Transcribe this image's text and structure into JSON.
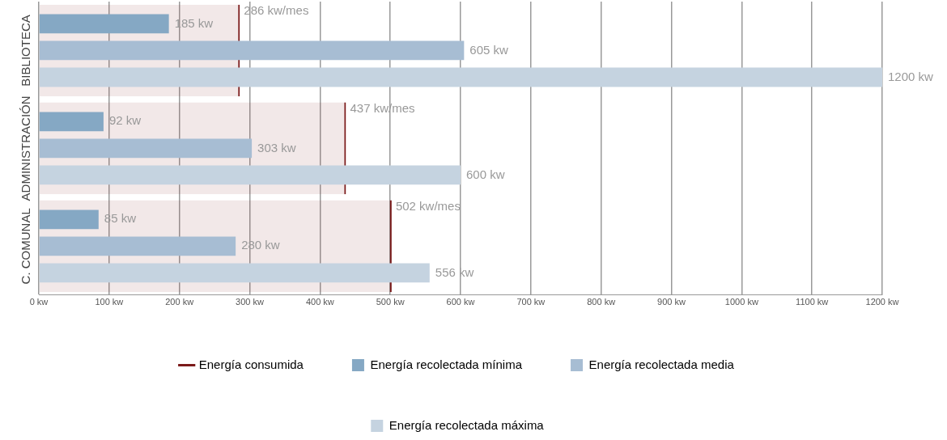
{
  "chart_data": {
    "type": "bar",
    "orientation": "horizontal",
    "categories": [
      "BIBLIOTECA",
      "ADMINISTRACIÓN",
      "C. COMUNAL"
    ],
    "series": [
      {
        "name": "Energía consumida",
        "type": "bar",
        "color": "#7b1a1a",
        "values": [
          286,
          437,
          502
        ],
        "value_labels": [
          "286 kw/mes",
          "437 kw/mes",
          "502 kw/mes"
        ]
      },
      {
        "name": "Energía recolectada mínima",
        "color": "#85a8c4",
        "values": [
          185,
          92,
          85
        ],
        "value_labels": [
          "185 kw",
          "92 kw",
          "85 kw"
        ]
      },
      {
        "name": "Energía recolectada media",
        "color": "#a7bdd3",
        "values": [
          605,
          303,
          280
        ],
        "value_labels": [
          "605 kw",
          "303 kw",
          "280 kw"
        ]
      },
      {
        "name": "Energía recolectada máxima",
        "color": "#c5d3e0",
        "values": [
          1200,
          600,
          556
        ],
        "value_labels": [
          "1200 kw",
          "600 kw",
          "556 kw"
        ]
      }
    ],
    "xlim": [
      0,
      1200
    ],
    "xticks": [
      {
        "value": 0,
        "label": "0 kw"
      },
      {
        "value": 100,
        "label": "100 kw"
      },
      {
        "value": 200,
        "label": "200 kw"
      },
      {
        "value": 300,
        "label": "300 kw"
      },
      {
        "value": 400,
        "label": "400 kw"
      },
      {
        "value": 500,
        "label": "500 kw"
      },
      {
        "value": 600,
        "label": "600 kw"
      },
      {
        "value": 700,
        "label": "700 kw"
      },
      {
        "value": 800,
        "label": "800 kw"
      },
      {
        "value": 900,
        "label": "900 kw"
      },
      {
        "value": 1000,
        "label": "1000 kw"
      },
      {
        "value": 1100,
        "label": "1100 kw"
      },
      {
        "value": 1200,
        "label": "1200 kw"
      }
    ],
    "grid": "x",
    "legend": "bottom"
  }
}
